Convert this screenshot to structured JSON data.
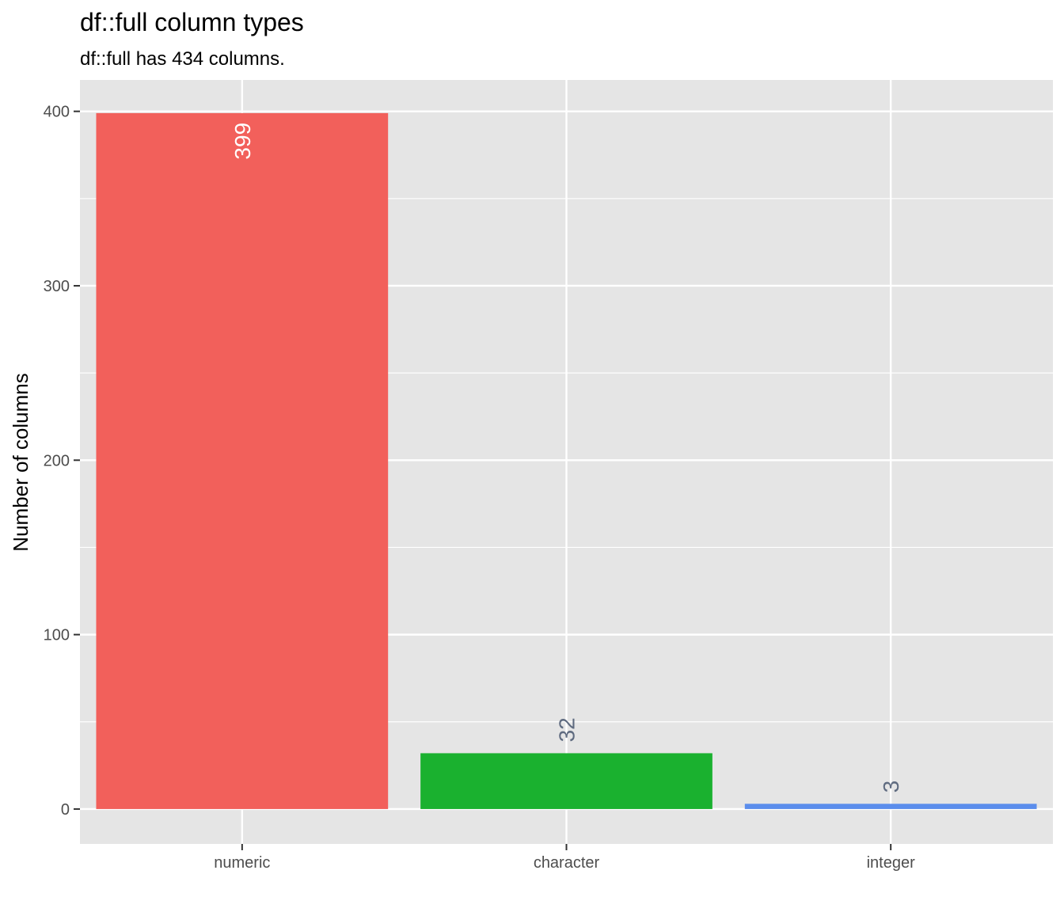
{
  "chart_data": {
    "type": "bar",
    "title": "df::full column types",
    "subtitle": "df::full has 434 columns.",
    "xlabel": "",
    "ylabel": "Number of columns",
    "categories": [
      "numeric",
      "character",
      "integer"
    ],
    "values": [
      399,
      32,
      3
    ],
    "data_labels": [
      "399",
      "32",
      "3"
    ],
    "colors": [
      "#F2605B",
      "#1AB12F",
      "#5B8DEC"
    ],
    "label_colors": [
      "#ffffff",
      "#5f6b80",
      "#5f6b80"
    ],
    "ylim": [
      -20,
      418
    ],
    "yticks": [
      0,
      100,
      200,
      300,
      400
    ],
    "ytick_labels": [
      "0",
      "100",
      "200",
      "300",
      "400"
    ],
    "grid": true,
    "legend": "none",
    "panel_background": "#E5E5E5"
  }
}
